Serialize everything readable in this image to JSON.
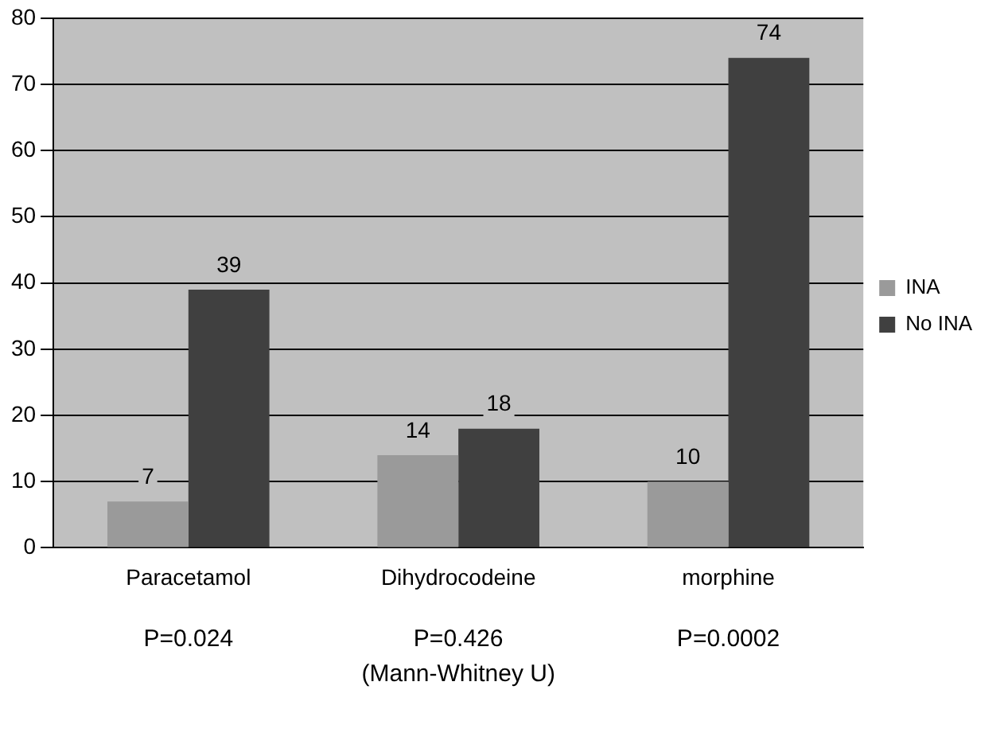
{
  "chart_data": {
    "type": "bar",
    "categories": [
      "Paracetamol",
      "Dihydrocodeine",
      "morphine"
    ],
    "series": [
      {
        "name": "INA",
        "color": "#9a9a9a",
        "values": [
          7,
          14,
          10
        ]
      },
      {
        "name": "No INA",
        "color": "#404040",
        "values": [
          39,
          18,
          74
        ]
      }
    ],
    "ylim": [
      0,
      80
    ],
    "yticks": [
      0,
      10,
      20,
      30,
      40,
      50,
      60,
      70,
      80
    ],
    "grid": "y",
    "legend": "right",
    "data_labels": true,
    "annotations": [
      "P=0.024",
      "P=0.426",
      "P=0.0002",
      "(Mann-Whitney U)"
    ]
  }
}
